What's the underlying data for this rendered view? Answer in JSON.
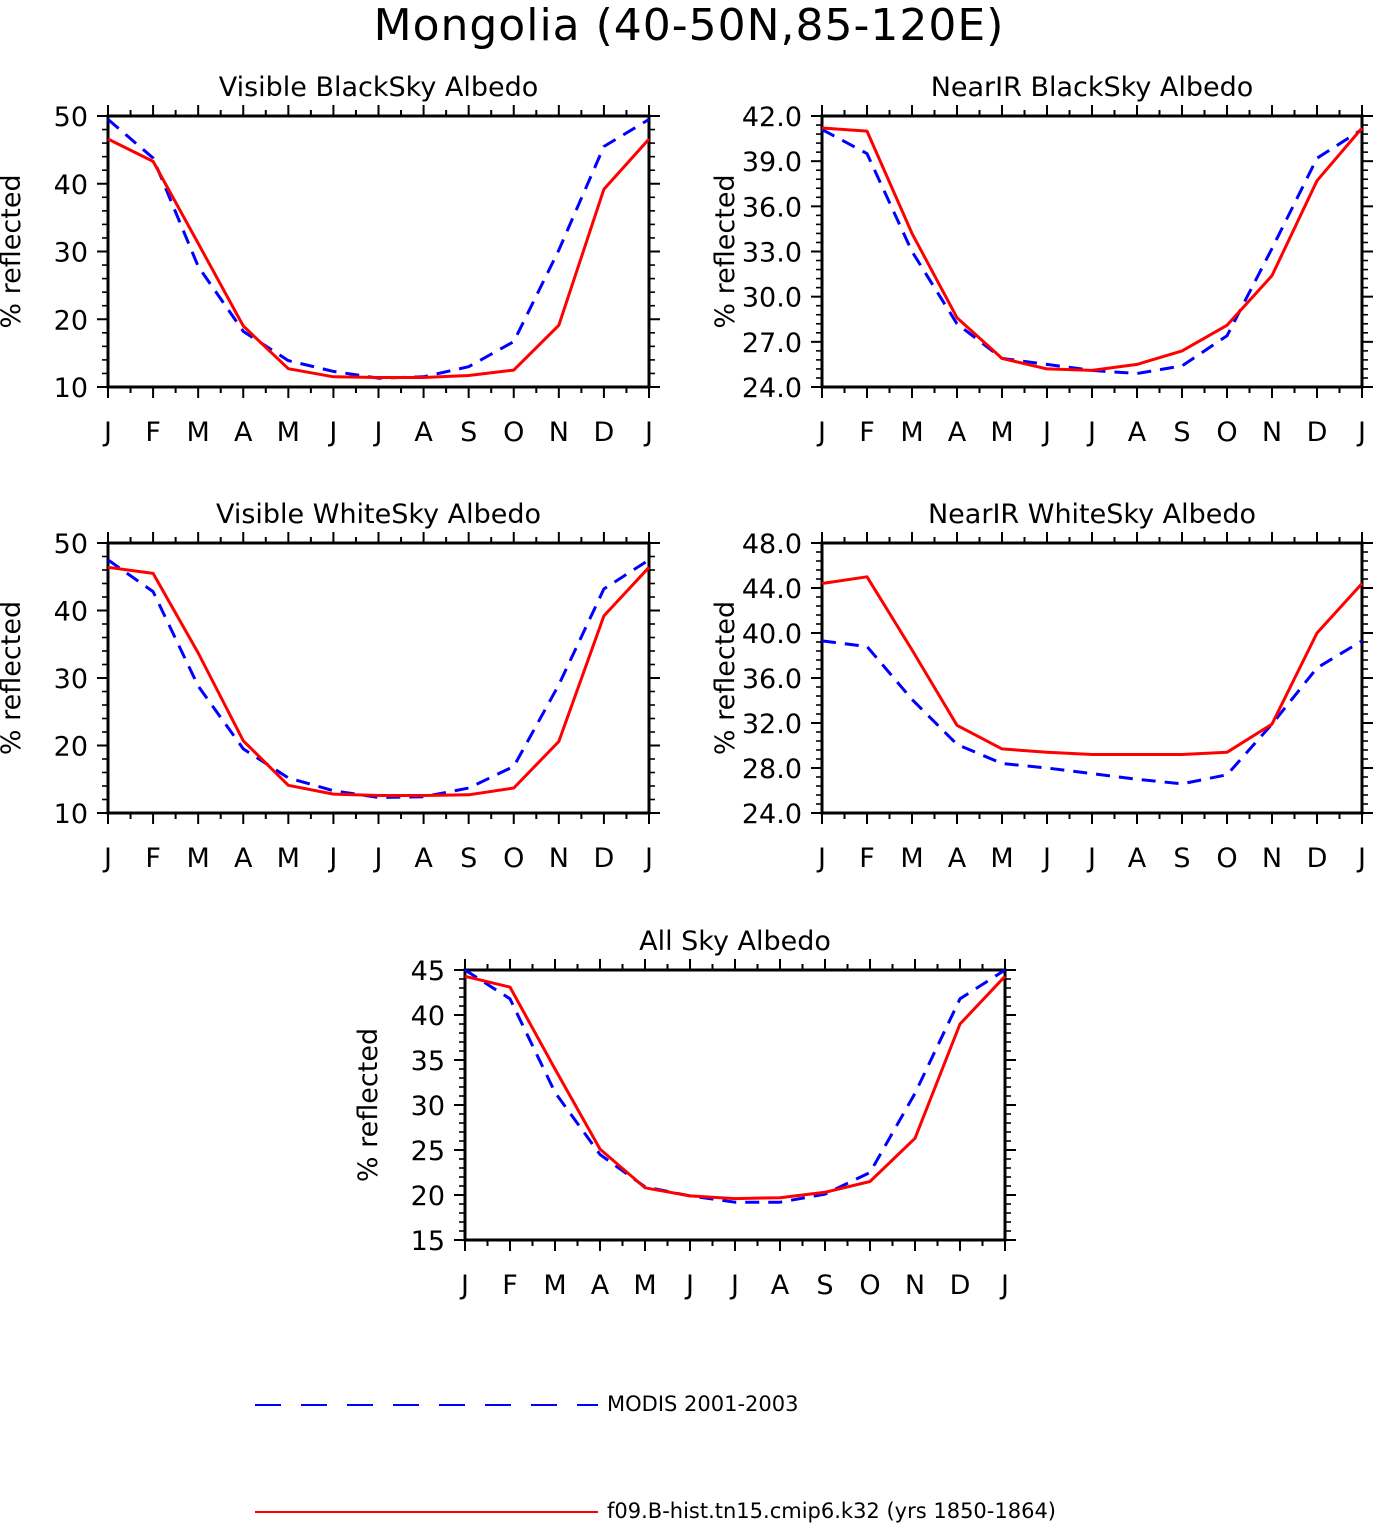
{
  "figure_title": "Mongolia (40-50N,85-120E)",
  "legend": {
    "entries": [
      {
        "label": "MODIS 2001-2003",
        "color": "#0000ff",
        "style": "dashed"
      },
      {
        "label": "f09.B-hist.tn15.cmip6.k32 (yrs 1850-1864)",
        "color": "#ff0000",
        "style": "solid"
      }
    ]
  },
  "chart_data": [
    {
      "type": "line",
      "title": "Visible BlackSky Albedo",
      "ylabel": "% reflected",
      "x": [
        "J",
        "F",
        "M",
        "A",
        "M",
        "J",
        "J",
        "A",
        "S",
        "O",
        "N",
        "D",
        "J"
      ],
      "ylim": [
        10,
        50
      ],
      "yticks": [
        "10",
        "20",
        "30",
        "40",
        "50"
      ],
      "series": [
        {
          "name": "MODIS 2001-2003",
          "color": "#0000ff",
          "style": "dashed",
          "values": [
            49.5,
            43.8,
            27.8,
            18.2,
            13.9,
            12.3,
            11.3,
            11.5,
            13.0,
            16.7,
            30.2,
            45.5,
            49.5
          ]
        },
        {
          "name": "f09.B-hist.tn15.cmip6.k32 (yrs 1850-1864)",
          "color": "#ff0000",
          "style": "solid",
          "values": [
            46.6,
            43.3,
            31.2,
            19.0,
            12.7,
            11.5,
            11.4,
            11.4,
            11.7,
            12.5,
            19.1,
            39.2,
            46.6
          ]
        }
      ]
    },
    {
      "type": "line",
      "title": "NearIR BlackSky Albedo",
      "ylabel": "% reflected",
      "x": [
        "J",
        "F",
        "M",
        "A",
        "M",
        "J",
        "J",
        "A",
        "S",
        "O",
        "N",
        "D",
        "J"
      ],
      "ylim": [
        24.0,
        42.0
      ],
      "yticks": [
        "24.0",
        "27.0",
        "30.0",
        "33.0",
        "36.0",
        "39.0",
        "42.0"
      ],
      "series": [
        {
          "name": "MODIS 2001-2003",
          "color": "#0000ff",
          "style": "dashed",
          "values": [
            41.1,
            39.5,
            33.0,
            28.2,
            25.9,
            25.5,
            25.1,
            24.9,
            25.4,
            27.4,
            33.2,
            39.2,
            41.1
          ]
        },
        {
          "name": "f09.B-hist.tn15.cmip6.k32 (yrs 1850-1864)",
          "color": "#ff0000",
          "style": "solid",
          "values": [
            41.2,
            41.0,
            34.2,
            28.6,
            25.9,
            25.2,
            25.1,
            25.5,
            26.4,
            28.1,
            31.4,
            37.7,
            41.2
          ]
        }
      ]
    },
    {
      "type": "line",
      "title": "Visible WhiteSky Albedo",
      "ylabel": "% reflected",
      "x": [
        "J",
        "F",
        "M",
        "A",
        "M",
        "J",
        "J",
        "A",
        "S",
        "O",
        "N",
        "D",
        "J"
      ],
      "ylim": [
        10,
        50
      ],
      "yticks": [
        "10",
        "20",
        "30",
        "40",
        "50"
      ],
      "series": [
        {
          "name": "MODIS 2001-2003",
          "color": "#0000ff",
          "style": "dashed",
          "values": [
            47.5,
            42.8,
            28.8,
            19.5,
            15.2,
            13.3,
            12.3,
            12.4,
            13.7,
            16.9,
            29.0,
            43.2,
            47.5
          ]
        },
        {
          "name": "f09.B-hist.tn15.cmip6.k32 (yrs 1850-1864)",
          "color": "#ff0000",
          "style": "solid",
          "values": [
            46.4,
            45.5,
            33.7,
            20.7,
            14.1,
            12.8,
            12.6,
            12.6,
            12.7,
            13.7,
            20.6,
            39.2,
            46.4
          ]
        }
      ]
    },
    {
      "type": "line",
      "title": "NearIR WhiteSky Albedo",
      "ylabel": "% reflected",
      "x": [
        "J",
        "F",
        "M",
        "A",
        "M",
        "J",
        "J",
        "A",
        "S",
        "O",
        "N",
        "D",
        "J"
      ],
      "ylim": [
        24.0,
        48.0
      ],
      "yticks": [
        "24.0",
        "28.0",
        "32.0",
        "36.0",
        "40.0",
        "44.0",
        "48.0"
      ],
      "series": [
        {
          "name": "MODIS 2001-2003",
          "color": "#0000ff",
          "style": "dashed",
          "values": [
            39.3,
            38.8,
            34.1,
            30.1,
            28.4,
            28.0,
            27.5,
            27.0,
            26.6,
            27.4,
            31.9,
            36.9,
            39.3
          ]
        },
        {
          "name": "f09.B-hist.tn15.cmip6.k32 (yrs 1850-1864)",
          "color": "#ff0000",
          "style": "solid",
          "values": [
            44.4,
            45.0,
            38.5,
            31.8,
            29.7,
            29.4,
            29.2,
            29.2,
            29.2,
            29.4,
            31.9,
            40.0,
            44.4
          ]
        }
      ]
    },
    {
      "type": "line",
      "title": "All Sky Albedo",
      "ylabel": "% reflected",
      "x": [
        "J",
        "F",
        "M",
        "A",
        "M",
        "J",
        "J",
        "A",
        "S",
        "O",
        "N",
        "D",
        "J"
      ],
      "ylim": [
        15,
        45
      ],
      "yticks": [
        "15",
        "20",
        "25",
        "30",
        "35",
        "40",
        "45"
      ],
      "series": [
        {
          "name": "MODIS 2001-2003",
          "color": "#0000ff",
          "style": "dashed",
          "values": [
            45.0,
            41.8,
            31.4,
            24.5,
            20.9,
            19.9,
            19.2,
            19.2,
            20.1,
            22.5,
            31.3,
            41.8,
            45.0
          ]
        },
        {
          "name": "f09.B-hist.tn15.cmip6.k32 (yrs 1850-1864)",
          "color": "#ff0000",
          "style": "solid",
          "values": [
            44.3,
            43.1,
            34.0,
            25.1,
            20.8,
            19.9,
            19.6,
            19.7,
            20.3,
            21.5,
            26.3,
            39.0,
            44.3
          ]
        }
      ]
    }
  ]
}
